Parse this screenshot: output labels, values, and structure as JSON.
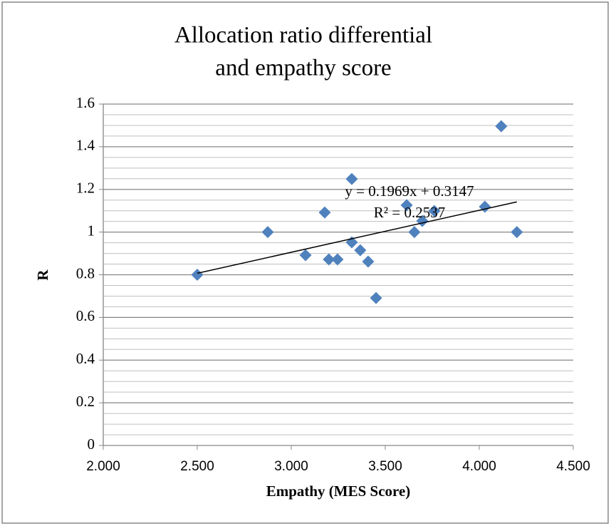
{
  "chart_data": {
    "type": "scatter",
    "title": "Allocation ratio differential and empathy score",
    "title_lines": [
      "Allocation ratio differential",
      "and empathy score"
    ],
    "x_label": "Empathy (MES Score)",
    "y_label": "R",
    "series": [
      {
        "name": "R",
        "color": "#4f81bd",
        "x": [
          2.5,
          2.875,
          3.076,
          3.2,
          3.246,
          3.178,
          3.322,
          3.322,
          3.367,
          3.409,
          3.451,
          3.614,
          3.655,
          3.697,
          3.761,
          4.03,
          4.117,
          4.2
        ],
        "values": [
          0.8,
          1.0,
          0.892,
          0.872,
          0.872,
          1.092,
          1.249,
          0.952,
          0.915,
          0.862,
          0.691,
          1.126,
          1.0,
          1.052,
          1.099,
          1.119,
          1.496,
          1.0
        ]
      }
    ],
    "trendline": {
      "slope": 0.1969,
      "intercept": 0.3147,
      "equation": "y = 0.1969x + 0.3147",
      "r_squared": "R² = 0.2537",
      "color": "#000000"
    },
    "xlim": [
      2,
      4.5
    ],
    "xticks": [
      {
        "value": 2,
        "label": "2.000"
      },
      {
        "value": 2.5,
        "label": "2.500"
      },
      {
        "value": 3,
        "label": "3.000"
      },
      {
        "value": 3.5,
        "label": "3.500"
      },
      {
        "value": 4,
        "label": "4.000"
      },
      {
        "value": 4.5,
        "label": "4.500"
      }
    ],
    "ylim": [
      0,
      1.6
    ],
    "yticks": [
      0,
      0.2,
      0.4,
      0.6,
      0.8,
      1,
      1.2,
      1.4,
      1.6
    ],
    "grid": true,
    "minor_grid_per_major": 4
  }
}
